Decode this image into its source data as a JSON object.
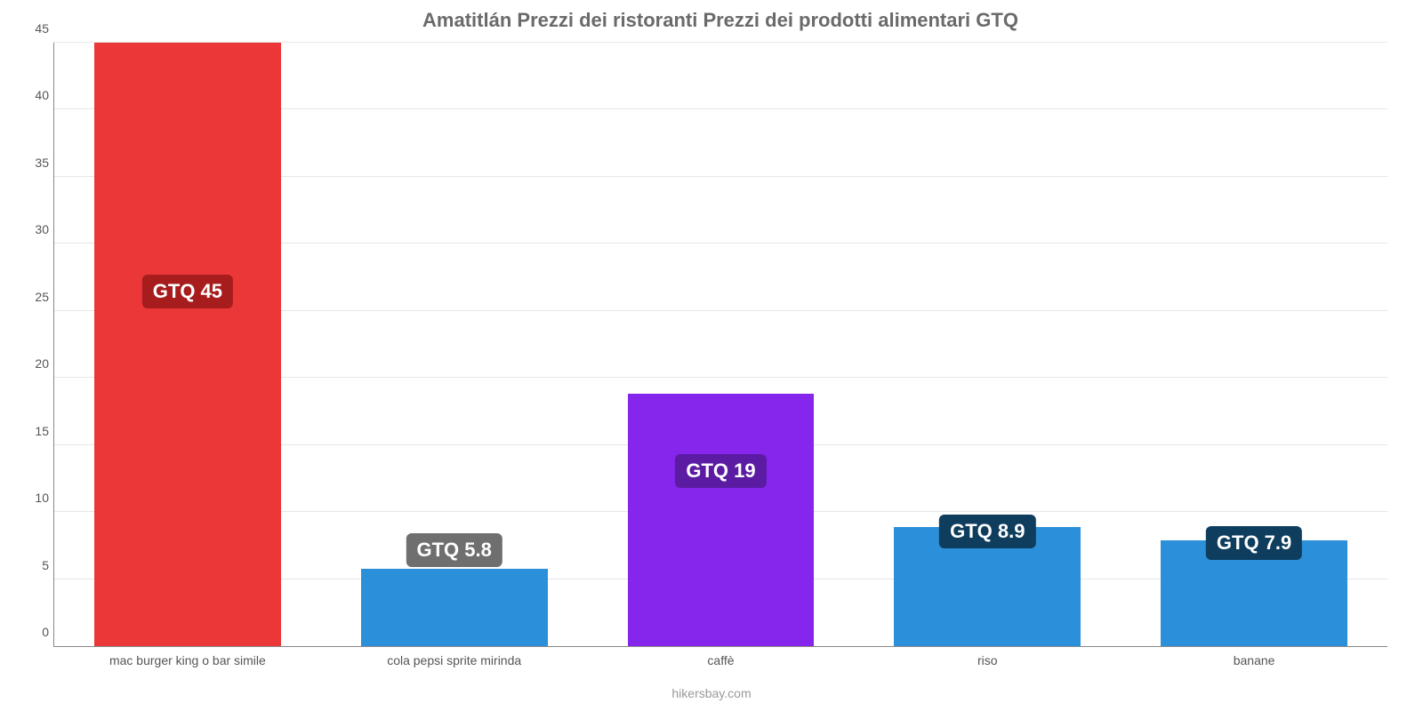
{
  "chart": {
    "type": "bar",
    "title": "Amatitlán Prezzi dei ristoranti Prezzi dei prodotti alimentari GTQ",
    "title_fontsize": 22,
    "title_color": "#6a6a6a",
    "background_color": "#ffffff",
    "grid_color": "#e6e6e6",
    "axis_color": "#888888",
    "tick_label_color": "#555555",
    "tick_label_fontsize": 14,
    "ylim": [
      0,
      45
    ],
    "ytick_step": 5,
    "yticks": [
      0,
      5,
      10,
      15,
      20,
      25,
      30,
      35,
      40,
      45
    ],
    "bar_width": 0.7,
    "categories": [
      "mac burger king o bar simile",
      "cola pepsi sprite mirinda",
      "caffè",
      "riso",
      "banane"
    ],
    "values": [
      45,
      5.8,
      18.8,
      8.9,
      7.9
    ],
    "bar_colors": [
      "#eb3737",
      "#2b8fd9",
      "#8626ed",
      "#2b8fd9",
      "#2b8fd9"
    ],
    "value_labels": [
      "GTQ 45",
      "GTQ 5.8",
      "GTQ 19",
      "GTQ 8.9",
      "GTQ 7.9"
    ],
    "value_label_fontsize": 22,
    "value_label_text_color": "#ffffff",
    "badge_bg_colors": [
      "#a71c1c",
      "#6f6f6f",
      "#5b1ba3",
      "#0e3d5e",
      "#0e3d5e"
    ],
    "badge_positions_value": [
      25.2,
      5.9,
      11.8,
      7.3,
      6.4
    ],
    "attribution": "hikersbay.com",
    "attribution_fontsize": 14,
    "attribution_color": "#999999"
  }
}
